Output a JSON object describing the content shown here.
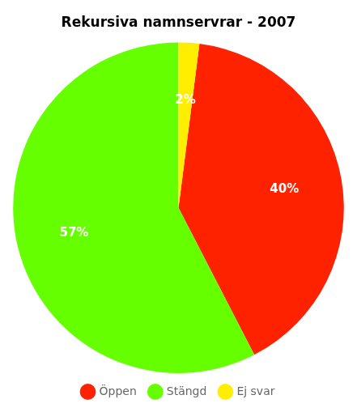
{
  "chart_data": {
    "type": "pie",
    "title": "Rekursiva namnservrar - 2007",
    "categories": [
      "Öppen",
      "Stängd",
      "Ej svar"
    ],
    "values": [
      40,
      57,
      2
    ],
    "value_labels": [
      "40%",
      "57%",
      "2%"
    ],
    "colors": [
      "#ff2200",
      "#66ff00",
      "#ffee00"
    ],
    "data_labels": true,
    "legend": "bottom"
  }
}
